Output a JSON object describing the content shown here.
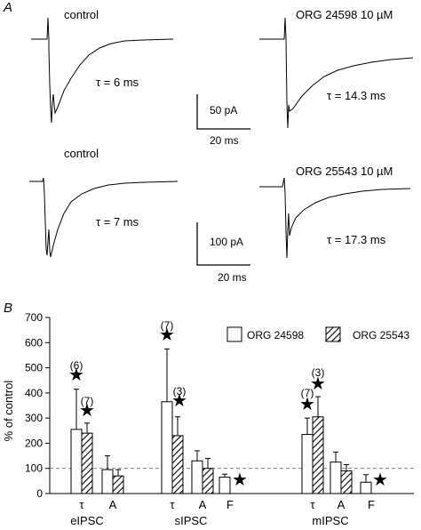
{
  "panel_a": {
    "label": "A",
    "traces": [
      {
        "label": "control",
        "tau_label": "τ = 6 ms"
      },
      {
        "label": "ORG 24598 10 µM",
        "tau_label": "τ = 14.3 ms"
      },
      {
        "label": "control",
        "tau_label": "τ = 7 ms"
      },
      {
        "label": "ORG 25543 10 µM",
        "tau_label": "τ = 17.3 ms"
      }
    ],
    "scalebars": [
      {
        "amplitude": "50 pA",
        "time": "20 ms"
      },
      {
        "amplitude": "100 pA",
        "time": "20 ms"
      }
    ]
  },
  "panel_b": {
    "label": "B"
  },
  "chart_data": {
    "type": "bar",
    "title": "",
    "xlabel": "",
    "ylabel": "% of control",
    "ylim": [
      0,
      700
    ],
    "yticks": [
      0,
      100,
      200,
      300,
      400,
      500,
      600,
      700
    ],
    "reference_line": 100,
    "groups": [
      {
        "name": "eIPSC",
        "categories": [
          "τ",
          "A"
        ]
      },
      {
        "name": "sIPSC",
        "categories": [
          "τ",
          "A",
          "F"
        ]
      },
      {
        "name": "mIPSC",
        "categories": [
          "τ",
          "A",
          "F"
        ]
      }
    ],
    "series": [
      {
        "name": "ORG 24598",
        "pattern": "open",
        "values": [
          255,
          95,
          365,
          130,
          65,
          235,
          125,
          45
        ],
        "errors": [
          160,
          55,
          210,
          40,
          12,
          65,
          40,
          30
        ]
      },
      {
        "name": "ORG 25543",
        "pattern": "hatched",
        "values": [
          240,
          70,
          230,
          100,
          null,
          305,
          90,
          null
        ],
        "errors": [
          40,
          25,
          75,
          40,
          null,
          80,
          25,
          null
        ]
      }
    ],
    "annotations": [
      {
        "category": "eIPSC τ",
        "series": "ORG 24598",
        "n": "(6)",
        "significant": true
      },
      {
        "category": "eIPSC τ",
        "series": "ORG 25543",
        "n": "(7)",
        "significant": true
      },
      {
        "category": "sIPSC τ",
        "series": "ORG 24598",
        "n": "(7)",
        "significant": true
      },
      {
        "category": "sIPSC τ",
        "series": "ORG 25543",
        "n": "(3)",
        "significant": true
      },
      {
        "category": "sIPSC F",
        "series": "ORG 25543",
        "n": "",
        "significant": true
      },
      {
        "category": "mIPSC τ",
        "series": "ORG 24598",
        "n": "(7)",
        "significant": true
      },
      {
        "category": "mIPSC τ",
        "series": "ORG 25543",
        "n": "(3)",
        "significant": true
      },
      {
        "category": "mIPSC F",
        "series": "ORG 25543",
        "n": "",
        "significant": true
      }
    ],
    "legend": {
      "placement": "top-right"
    }
  }
}
